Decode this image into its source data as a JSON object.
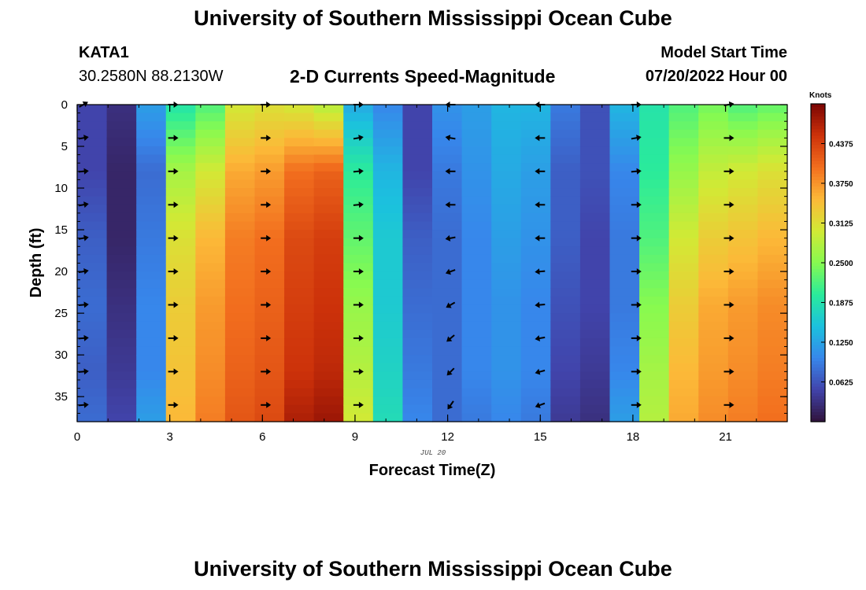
{
  "header": {
    "title": "University of Southern Mississippi Ocean Cube",
    "station_id": "KATA1",
    "station_coords": "30.2580N  88.2130W",
    "subtitle": "2-D Currents Speed-Magnitude",
    "model_start_label": "Model Start Time",
    "model_start_value": "07/20/2022 Hour 00"
  },
  "footer": {
    "title": "University of Southern Mississippi Ocean Cube"
  },
  "chart_data": {
    "type": "heatmap",
    "title": "2-D Currents Speed-Magnitude",
    "xlabel": "Forecast Time(Z)",
    "ylabel": "Depth (ft)",
    "date_label": "JUL 20",
    "xlim": [
      0,
      23
    ],
    "ylim": [
      38,
      0
    ],
    "x_ticks": [
      0,
      3,
      6,
      9,
      12,
      15,
      18,
      21
    ],
    "y_ticks": [
      0,
      5,
      10,
      15,
      20,
      25,
      30,
      35
    ],
    "value_unit": "Knots",
    "color_range": [
      0.0,
      0.5
    ],
    "colorbar_ticks": [
      "0.0625",
      "0.1250",
      "0.1875",
      "0.2500",
      "0.3125",
      "0.3750",
      "0.4375"
    ],
    "colorbar_tick_values": [
      0.0625,
      0.125,
      0.1875,
      0.25,
      0.3125,
      0.375,
      0.4375
    ],
    "hours": [
      0,
      1,
      2,
      3,
      4,
      5,
      6,
      7,
      8,
      9,
      10,
      11,
      12,
      13,
      14,
      15,
      16,
      17,
      18,
      19,
      20,
      21,
      22,
      23
    ],
    "depth_profile": {
      "depths": [
        0,
        8,
        16,
        24,
        32,
        38
      ],
      "hourly_speed_knots": [
        [
          0.05,
          0.05,
          0.07,
          0.08,
          0.07,
          0.08
        ],
        [
          0.03,
          0.02,
          0.02,
          0.03,
          0.04,
          0.05
        ],
        [
          0.12,
          0.08,
          0.09,
          0.1,
          0.1,
          0.12
        ],
        [
          0.19,
          0.27,
          0.31,
          0.33,
          0.34,
          0.35
        ],
        [
          0.22,
          0.3,
          0.35,
          0.37,
          0.38,
          0.39
        ],
        [
          0.3,
          0.36,
          0.39,
          0.4,
          0.41,
          0.42
        ],
        [
          0.31,
          0.37,
          0.4,
          0.41,
          0.42,
          0.43
        ],
        [
          0.3,
          0.4,
          0.43,
          0.44,
          0.45,
          0.47
        ],
        [
          0.28,
          0.41,
          0.44,
          0.45,
          0.46,
          0.48
        ],
        [
          0.13,
          0.2,
          0.23,
          0.26,
          0.28,
          0.3
        ],
        [
          0.1,
          0.14,
          0.16,
          0.16,
          0.17,
          0.18
        ],
        [
          0.05,
          0.05,
          0.07,
          0.08,
          0.09,
          0.1
        ],
        [
          0.11,
          0.09,
          0.08,
          0.08,
          0.08,
          0.08
        ],
        [
          0.12,
          0.11,
          0.1,
          0.1,
          0.1,
          0.09
        ],
        [
          0.14,
          0.13,
          0.12,
          0.11,
          0.11,
          0.1
        ],
        [
          0.14,
          0.12,
          0.11,
          0.1,
          0.1,
          0.09
        ],
        [
          0.09,
          0.07,
          0.07,
          0.06,
          0.05,
          0.04
        ],
        [
          0.06,
          0.06,
          0.05,
          0.05,
          0.04,
          0.03
        ],
        [
          0.14,
          0.1,
          0.09,
          0.09,
          0.1,
          0.12
        ],
        [
          0.19,
          0.2,
          0.22,
          0.25,
          0.27,
          0.28
        ],
        [
          0.22,
          0.26,
          0.3,
          0.33,
          0.35,
          0.36
        ],
        [
          0.24,
          0.29,
          0.33,
          0.36,
          0.37,
          0.38
        ],
        [
          0.22,
          0.3,
          0.34,
          0.37,
          0.38,
          0.39
        ],
        [
          0.23,
          0.31,
          0.35,
          0.38,
          0.39,
          0.4
        ]
      ]
    },
    "vectors": {
      "hours": [
        0.2,
        3.1,
        6.1,
        9.1,
        12.1,
        15.0,
        18.1,
        21.1
      ],
      "depths": [
        0,
        4,
        8,
        12,
        16,
        20,
        24,
        28,
        32,
        36
      ],
      "direction_deg": [
        [
          60,
          80,
          85,
          80,
          80,
          80,
          85,
          85,
          85,
          85
        ],
        [
          90,
          90,
          90,
          90,
          90,
          90,
          90,
          90,
          90,
          90
        ],
        [
          90,
          90,
          90,
          90,
          90,
          90,
          90,
          90,
          90,
          90
        ],
        [
          90,
          80,
          85,
          85,
          90,
          90,
          90,
          90,
          90,
          90
        ],
        [
          270,
          280,
          270,
          270,
          260,
          250,
          240,
          230,
          225,
          215
        ],
        [
          270,
          270,
          270,
          270,
          270,
          265,
          265,
          260,
          255,
          250
        ],
        [
          90,
          80,
          85,
          90,
          90,
          90,
          90,
          90,
          90,
          90
        ],
        [
          80,
          90,
          90,
          90,
          90,
          90,
          90,
          90,
          90,
          90
        ]
      ]
    }
  }
}
